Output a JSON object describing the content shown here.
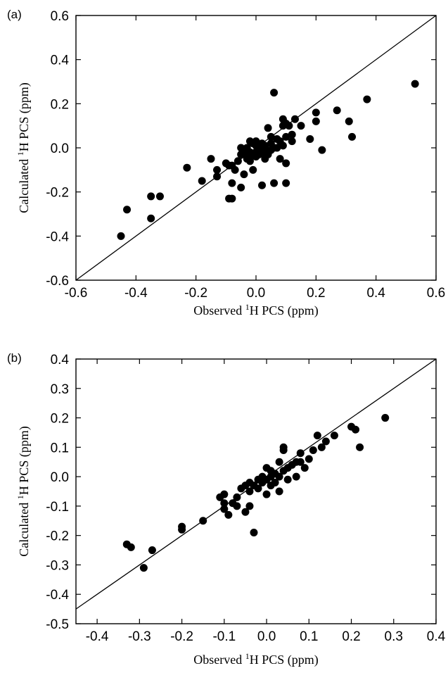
{
  "chart_data": [
    {
      "type": "scatter",
      "panel_label": "(a)",
      "xlabel": {
        "prefix": "Observed ",
        "sup": "1",
        "suffix": "H PCS (ppm)"
      },
      "ylabel": {
        "prefix": "Calculated ",
        "sup": "1",
        "suffix": "H PCS (ppm)"
      },
      "xlim": [
        -0.6,
        0.6
      ],
      "ylim": [
        -0.6,
        0.6
      ],
      "xticks": [
        -0.6,
        -0.4,
        -0.2,
        0.0,
        0.2,
        0.4,
        0.6
      ],
      "yticks": [
        -0.6,
        -0.4,
        -0.2,
        0.0,
        0.2,
        0.4,
        0.6
      ],
      "xtick_labels": [
        "-0.6",
        "-0.4",
        "-0.2",
        "0.0",
        "0.2",
        "0.4",
        "0.6"
      ],
      "ytick_labels": [
        "-0.6",
        "-0.4",
        "-0.2",
        "0.0",
        "0.2",
        "0.4",
        "0.6"
      ],
      "reference_line": {
        "from": [
          -0.6,
          -0.6
        ],
        "to": [
          0.6,
          0.6
        ]
      },
      "grid": false,
      "points": [
        [
          -0.45,
          -0.4
        ],
        [
          -0.43,
          -0.28
        ],
        [
          -0.35,
          -0.32
        ],
        [
          -0.35,
          -0.22
        ],
        [
          -0.32,
          -0.22
        ],
        [
          -0.23,
          -0.09
        ],
        [
          -0.18,
          -0.15
        ],
        [
          -0.15,
          -0.05
        ],
        [
          -0.13,
          -0.1
        ],
        [
          -0.13,
          -0.13
        ],
        [
          -0.1,
          -0.07
        ],
        [
          -0.09,
          -0.08
        ],
        [
          -0.08,
          -0.08
        ],
        [
          -0.09,
          -0.23
        ],
        [
          -0.08,
          -0.23
        ],
        [
          -0.08,
          -0.16
        ],
        [
          -0.07,
          -0.1
        ],
        [
          -0.06,
          -0.06
        ],
        [
          -0.05,
          -0.03
        ],
        [
          -0.05,
          0.0
        ],
        [
          -0.05,
          -0.18
        ],
        [
          -0.04,
          -0.12
        ],
        [
          -0.04,
          -0.03
        ],
        [
          -0.03,
          -0.02
        ],
        [
          -0.03,
          0.0
        ],
        [
          -0.03,
          -0.05
        ],
        [
          -0.02,
          0.03
        ],
        [
          -0.02,
          -0.02
        ],
        [
          -0.02,
          -0.06
        ],
        [
          -0.01,
          -0.03
        ],
        [
          -0.01,
          0.02
        ],
        [
          -0.01,
          -0.1
        ],
        [
          0.0,
          -0.02
        ],
        [
          0.0,
          0.01
        ],
        [
          0.0,
          0.03
        ],
        [
          0.0,
          -0.04
        ],
        [
          0.01,
          -0.01
        ],
        [
          0.01,
          0.0
        ],
        [
          0.01,
          -0.03
        ],
        [
          0.02,
          -0.02
        ],
        [
          0.02,
          0.02
        ],
        [
          0.02,
          -0.17
        ],
        [
          0.03,
          0.0
        ],
        [
          0.03,
          -0.05
        ],
        [
          0.03,
          0.01
        ],
        [
          0.04,
          0.09
        ],
        [
          0.04,
          -0.03
        ],
        [
          0.05,
          0.05
        ],
        [
          0.05,
          0.02
        ],
        [
          0.05,
          -0.01
        ],
        [
          0.06,
          0.0
        ],
        [
          0.06,
          -0.16
        ],
        [
          0.06,
          0.25
        ],
        [
          0.07,
          0.04
        ],
        [
          0.07,
          0.0
        ],
        [
          0.08,
          0.03
        ],
        [
          0.08,
          -0.05
        ],
        [
          0.09,
          0.01
        ],
        [
          0.09,
          0.1
        ],
        [
          0.09,
          0.13
        ],
        [
          0.1,
          0.11
        ],
        [
          0.1,
          -0.07
        ],
        [
          0.1,
          -0.16
        ],
        [
          0.1,
          0.05
        ],
        [
          0.11,
          0.1
        ],
        [
          0.12,
          0.06
        ],
        [
          0.12,
          0.03
        ],
        [
          0.13,
          0.13
        ],
        [
          0.15,
          0.1
        ],
        [
          0.18,
          0.04
        ],
        [
          0.2,
          0.16
        ],
        [
          0.2,
          0.12
        ],
        [
          0.22,
          -0.01
        ],
        [
          0.27,
          0.17
        ],
        [
          0.31,
          0.12
        ],
        [
          0.32,
          0.05
        ],
        [
          0.37,
          0.22
        ],
        [
          0.53,
          0.29
        ]
      ]
    },
    {
      "type": "scatter",
      "panel_label": "(b)",
      "xlabel": {
        "prefix": "Observed ",
        "sup": "1",
        "suffix": "H PCS (ppm)"
      },
      "ylabel": {
        "prefix": "Calculated ",
        "sup": "1",
        "suffix": "H PCS (ppm)"
      },
      "xlim": [
        -0.45,
        0.4
      ],
      "ylim": [
        -0.5,
        0.4
      ],
      "xticks": [
        -0.4,
        -0.3,
        -0.2,
        -0.1,
        0.0,
        0.1,
        0.2,
        0.3,
        0.4
      ],
      "yticks": [
        -0.5,
        -0.4,
        -0.3,
        -0.2,
        -0.1,
        0.0,
        0.1,
        0.2,
        0.3,
        0.4
      ],
      "xtick_labels": [
        "-0.4",
        "-0.3",
        "-0.2",
        "-0.1",
        "0.0",
        "0.1",
        "0.2",
        "0.3",
        "0.4"
      ],
      "ytick_labels": [
        "-0.5",
        "-0.4",
        "-0.3",
        "-0.2",
        "-0.1",
        "0.0",
        "0.1",
        "0.2",
        "0.3",
        "0.4"
      ],
      "reference_line": {
        "from": [
          -0.45,
          -0.45
        ],
        "to": [
          0.4,
          0.4
        ]
      },
      "grid": false,
      "points": [
        [
          -0.33,
          -0.23
        ],
        [
          -0.32,
          -0.24
        ],
        [
          -0.29,
          -0.31
        ],
        [
          -0.27,
          -0.25
        ],
        [
          -0.2,
          -0.17
        ],
        [
          -0.2,
          -0.18
        ],
        [
          -0.15,
          -0.15
        ],
        [
          -0.11,
          -0.07
        ],
        [
          -0.1,
          -0.09
        ],
        [
          -0.1,
          -0.06
        ],
        [
          -0.1,
          -0.11
        ],
        [
          -0.09,
          -0.13
        ],
        [
          -0.08,
          -0.09
        ],
        [
          -0.07,
          -0.07
        ],
        [
          -0.07,
          -0.1
        ],
        [
          -0.06,
          -0.04
        ],
        [
          -0.05,
          -0.12
        ],
        [
          -0.05,
          -0.03
        ],
        [
          -0.04,
          -0.1
        ],
        [
          -0.04,
          -0.02
        ],
        [
          -0.04,
          -0.05
        ],
        [
          -0.03,
          -0.19
        ],
        [
          -0.03,
          -0.03
        ],
        [
          -0.02,
          -0.01
        ],
        [
          -0.02,
          -0.04
        ],
        [
          -0.01,
          0.0
        ],
        [
          -0.01,
          -0.02
        ],
        [
          0.0,
          0.03
        ],
        [
          0.0,
          -0.01
        ],
        [
          0.0,
          -0.06
        ],
        [
          0.01,
          0.02
        ],
        [
          0.01,
          -0.03
        ],
        [
          0.01,
          0.0
        ],
        [
          0.02,
          0.01
        ],
        [
          0.02,
          -0.02
        ],
        [
          0.03,
          0.0
        ],
        [
          0.03,
          0.05
        ],
        [
          0.03,
          -0.05
        ],
        [
          0.04,
          0.1
        ],
        [
          0.04,
          0.09
        ],
        [
          0.04,
          0.02
        ],
        [
          0.05,
          -0.01
        ],
        [
          0.05,
          0.03
        ],
        [
          0.06,
          0.04
        ],
        [
          0.07,
          0.0
        ],
        [
          0.07,
          0.05
        ],
        [
          0.08,
          0.08
        ],
        [
          0.08,
          0.05
        ],
        [
          0.09,
          0.03
        ],
        [
          0.1,
          0.06
        ],
        [
          0.11,
          0.09
        ],
        [
          0.12,
          0.14
        ],
        [
          0.13,
          0.1
        ],
        [
          0.14,
          0.12
        ],
        [
          0.16,
          0.14
        ],
        [
          0.2,
          0.17
        ],
        [
          0.21,
          0.16
        ],
        [
          0.22,
          0.1
        ],
        [
          0.28,
          0.2
        ]
      ]
    }
  ]
}
